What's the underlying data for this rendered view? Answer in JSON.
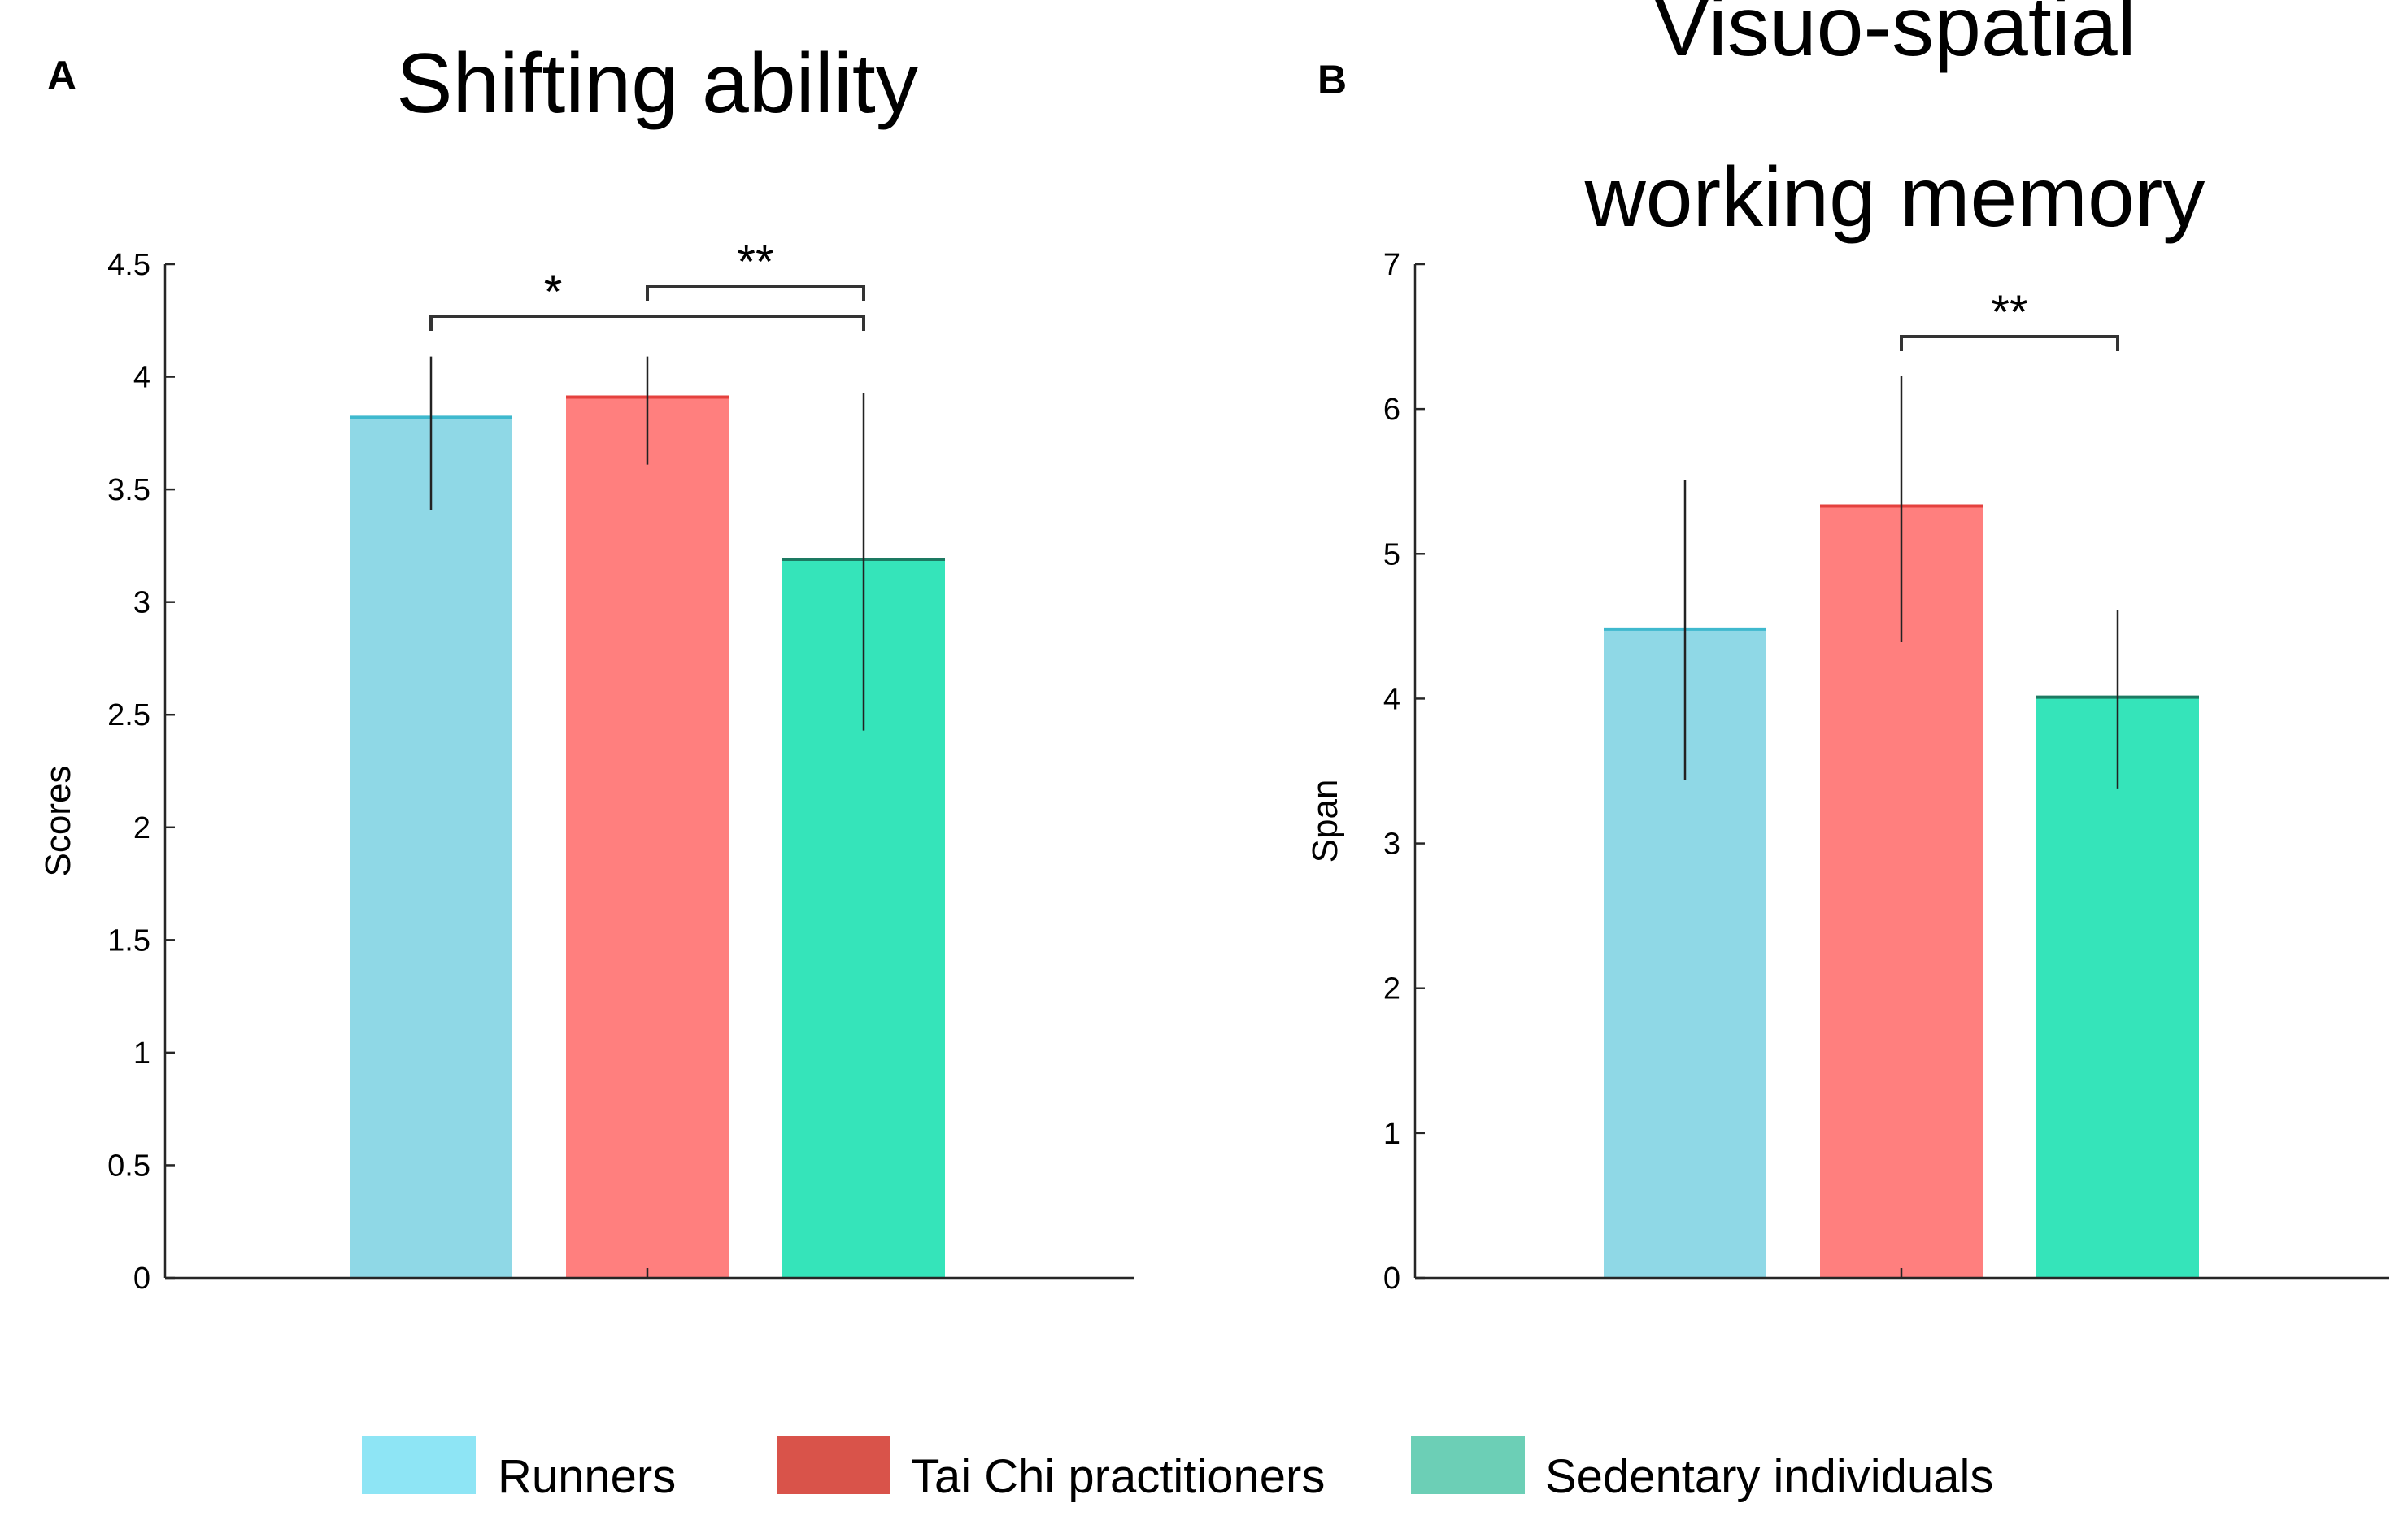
{
  "chart_data": [
    {
      "type": "bar",
      "panel": "A",
      "title": "Shifting ability",
      "xlabel": "",
      "ylabel": "Scores",
      "ylim": [
        0,
        4.5
      ],
      "yticks": [
        0,
        0.5,
        1,
        1.5,
        2,
        2.5,
        3,
        3.5,
        4,
        4.5
      ],
      "ytick_labels": [
        "0",
        "0.5",
        "1",
        "1.5",
        "2",
        "2.5",
        "3",
        "3.5",
        "4",
        "4.5"
      ],
      "grid": false,
      "categories": [
        "Runners",
        "Tai Chi practitioners",
        "Sedentary individuals"
      ],
      "values": [
        3.82,
        3.91,
        3.19
      ],
      "error_low": [
        3.41,
        3.61,
        2.43
      ],
      "error_high": [
        4.09,
        4.09,
        3.93
      ],
      "significance": [
        {
          "from": 0,
          "to": 2,
          "label": "*"
        },
        {
          "from": 1,
          "to": 2,
          "label": "**"
        }
      ]
    },
    {
      "type": "bar",
      "panel": "B",
      "title": "Visuo-spatial working memory",
      "title_lines": [
        "Visuo-spatial",
        "working memory"
      ],
      "xlabel": "",
      "ylabel": "Span",
      "ylim": [
        0,
        7
      ],
      "yticks": [
        0,
        1,
        2,
        3,
        4,
        5,
        6,
        7
      ],
      "ytick_labels": [
        "0",
        "1",
        "2",
        "3",
        "4",
        "5",
        "6",
        "7"
      ],
      "grid": false,
      "categories": [
        "Runners",
        "Tai Chi practitioners",
        "Sedentary individuals"
      ],
      "values": [
        4.48,
        5.33,
        4.01
      ],
      "error_low": [
        3.44,
        4.39,
        3.38
      ],
      "error_high": [
        5.51,
        6.23,
        4.61
      ],
      "significance": [
        {
          "from": 1,
          "to": 2,
          "label": "**"
        }
      ]
    }
  ],
  "legend": {
    "position": "bottom",
    "items": [
      {
        "label": "Runners",
        "color": "#8EE5F5",
        "bar_color": "#8FD8E6",
        "edge_color": "#3FB9CE"
      },
      {
        "label": "Tai Chi practitioners",
        "color": "#D9534A",
        "bar_color": "#FF7F7E",
        "edge_color": "#E4413E"
      },
      {
        "label": "Sedentary individuals",
        "color": "#6CCFB6",
        "bar_color": "#35E4BA",
        "edge_color": "#1D7A62"
      }
    ]
  }
}
